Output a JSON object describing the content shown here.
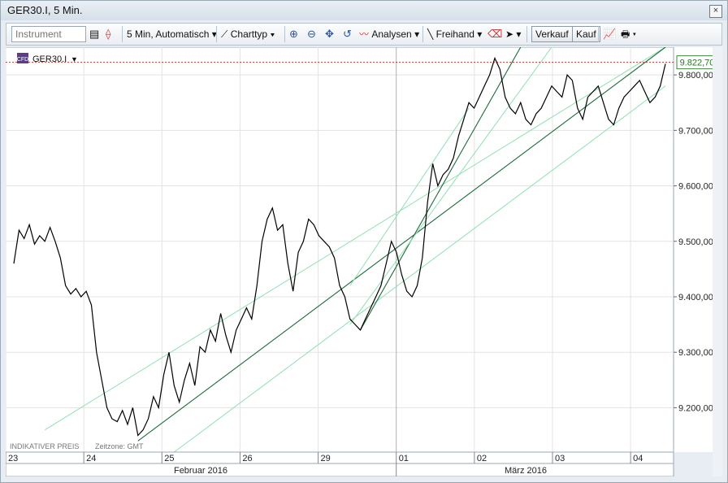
{
  "window": {
    "title": "GER30.I, 5 Min.",
    "close_label": "×"
  },
  "toolbar": {
    "instrument_placeholder": "Instrument",
    "period_label": "5 Min,  Automatisch",
    "charttype_label": "Charttyp",
    "analysis_label": "Analysen",
    "freehand_label": "Freihand",
    "sell_label": "Verkauf",
    "buy_label": "Kauf"
  },
  "legend": {
    "symbol": "GER30.I",
    "badge": "CFD"
  },
  "price_tag": "9.822,70",
  "footer": {
    "indicative": "INDIKATIVER PREIS",
    "timezone": "Zeitzone: GMT"
  },
  "colors": {
    "price_line": "#000000",
    "trend_dark": "#1e6b3a",
    "trend_light": "#8fe0b0",
    "tag_text": "#1d7a1d",
    "ref_line": "#c0392b"
  },
  "chart_data": {
    "type": "line",
    "y_ticks": [
      "9.800,00",
      "9.700,00",
      "9.600,00",
      "9.500,00",
      "9.400,00",
      "9.300,00",
      "9.200,00"
    ],
    "y_tick_values": [
      9800,
      9700,
      9600,
      9500,
      9400,
      9300,
      9200
    ],
    "ylim": [
      9120,
      9850
    ],
    "x_day_labels": [
      "23",
      "24",
      "25",
      "26",
      "29",
      "01",
      "02",
      "03",
      "04"
    ],
    "x_month_labels": [
      "Februar 2016",
      "März 2016"
    ],
    "last_price": 9822.7,
    "series": [
      {
        "values": [
          9460,
          9520,
          9505,
          9530,
          9495,
          9510,
          9500,
          9525,
          9500,
          9470,
          9420,
          9405,
          9415,
          9400,
          9410,
          9385,
          9300,
          9250,
          9200,
          9180,
          9175,
          9195,
          9170,
          9200,
          9150,
          9160,
          9180,
          9220,
          9200,
          9260,
          9300,
          9240,
          9210,
          9250,
          9280,
          9240,
          9310,
          9300,
          9340,
          9320,
          9370,
          9330,
          9300,
          9340,
          9360,
          9380,
          9360,
          9420,
          9500,
          9540,
          9560,
          9520,
          9530,
          9460,
          9410,
          9480,
          9500,
          9540,
          9530,
          9510,
          9500,
          9490,
          9470,
          9420,
          9400,
          9360,
          9350,
          9340,
          9360,
          9380,
          9400,
          9420,
          9460,
          9500,
          9480,
          9440,
          9410,
          9400,
          9420,
          9470,
          9570,
          9640,
          9600,
          9620,
          9630,
          9650,
          9690,
          9720,
          9750,
          9740,
          9760,
          9780,
          9800,
          9830,
          9810,
          9760,
          9740,
          9730,
          9750,
          9720,
          9710,
          9730,
          9740,
          9760,
          9780,
          9770,
          9760,
          9800,
          9790,
          9740,
          9720,
          9760,
          9770,
          9780,
          9750,
          9720,
          9710,
          9740,
          9760,
          9770,
          9780,
          9790,
          9770,
          9750,
          9760,
          9780,
          9820
        ]
      }
    ],
    "trendlines": [
      {
        "style": "light",
        "from": {
          "i": 6,
          "v": 9160
        },
        "to": {
          "i": 126,
          "v": 9850
        }
      },
      {
        "style": "dark",
        "from": {
          "i": 24,
          "v": 9140
        },
        "to": {
          "i": 126,
          "v": 9850
        }
      },
      {
        "style": "light",
        "from": {
          "i": 31,
          "v": 9120
        },
        "to": {
          "i": 126,
          "v": 9780
        }
      },
      {
        "style": "dark",
        "from": {
          "i": 67,
          "v": 9340
        },
        "to": {
          "i": 98,
          "v": 9850
        }
      },
      {
        "style": "light",
        "from": {
          "i": 65,
          "v": 9350
        },
        "to": {
          "i": 104,
          "v": 9850
        }
      },
      {
        "style": "light",
        "from": {
          "i": 65,
          "v": 9420
        },
        "to": {
          "i": 88,
          "v": 9740
        }
      }
    ]
  }
}
